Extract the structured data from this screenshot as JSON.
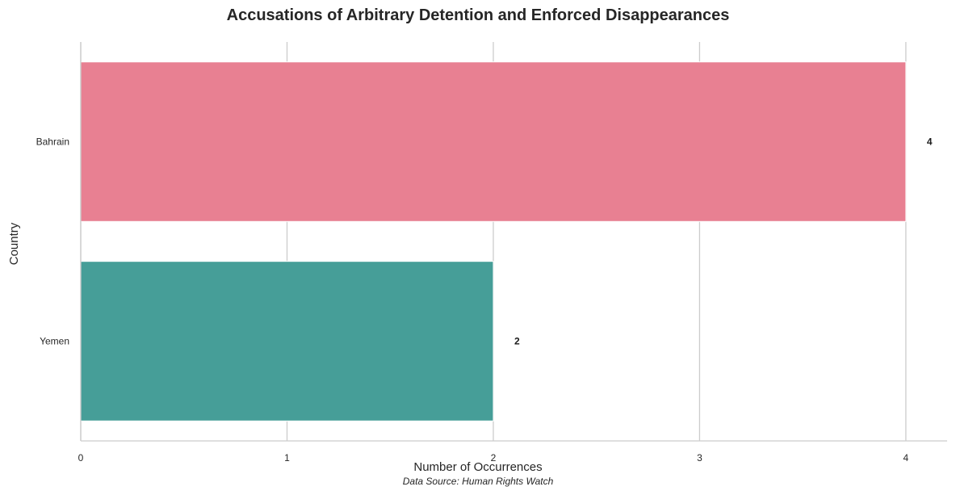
{
  "chart_data": {
    "type": "bar",
    "orientation": "horizontal",
    "title": "Accusations of Arbitrary Detention and Enforced Disappearances",
    "xlabel": "Number of Occurrences",
    "ylabel": "Country",
    "categories": [
      "Bahrain",
      "Yemen"
    ],
    "values": [
      4,
      2
    ],
    "data_labels": [
      "4",
      "2"
    ],
    "colors": [
      "#e88092",
      "#469e98"
    ],
    "xlim": [
      0,
      4.2
    ],
    "xticks": [
      0,
      1,
      2,
      3,
      4
    ],
    "xtick_labels": [
      "0",
      "1",
      "2",
      "3",
      "4"
    ],
    "grid": "vertical",
    "source_note": "Data Source: Human Rights Watch"
  }
}
